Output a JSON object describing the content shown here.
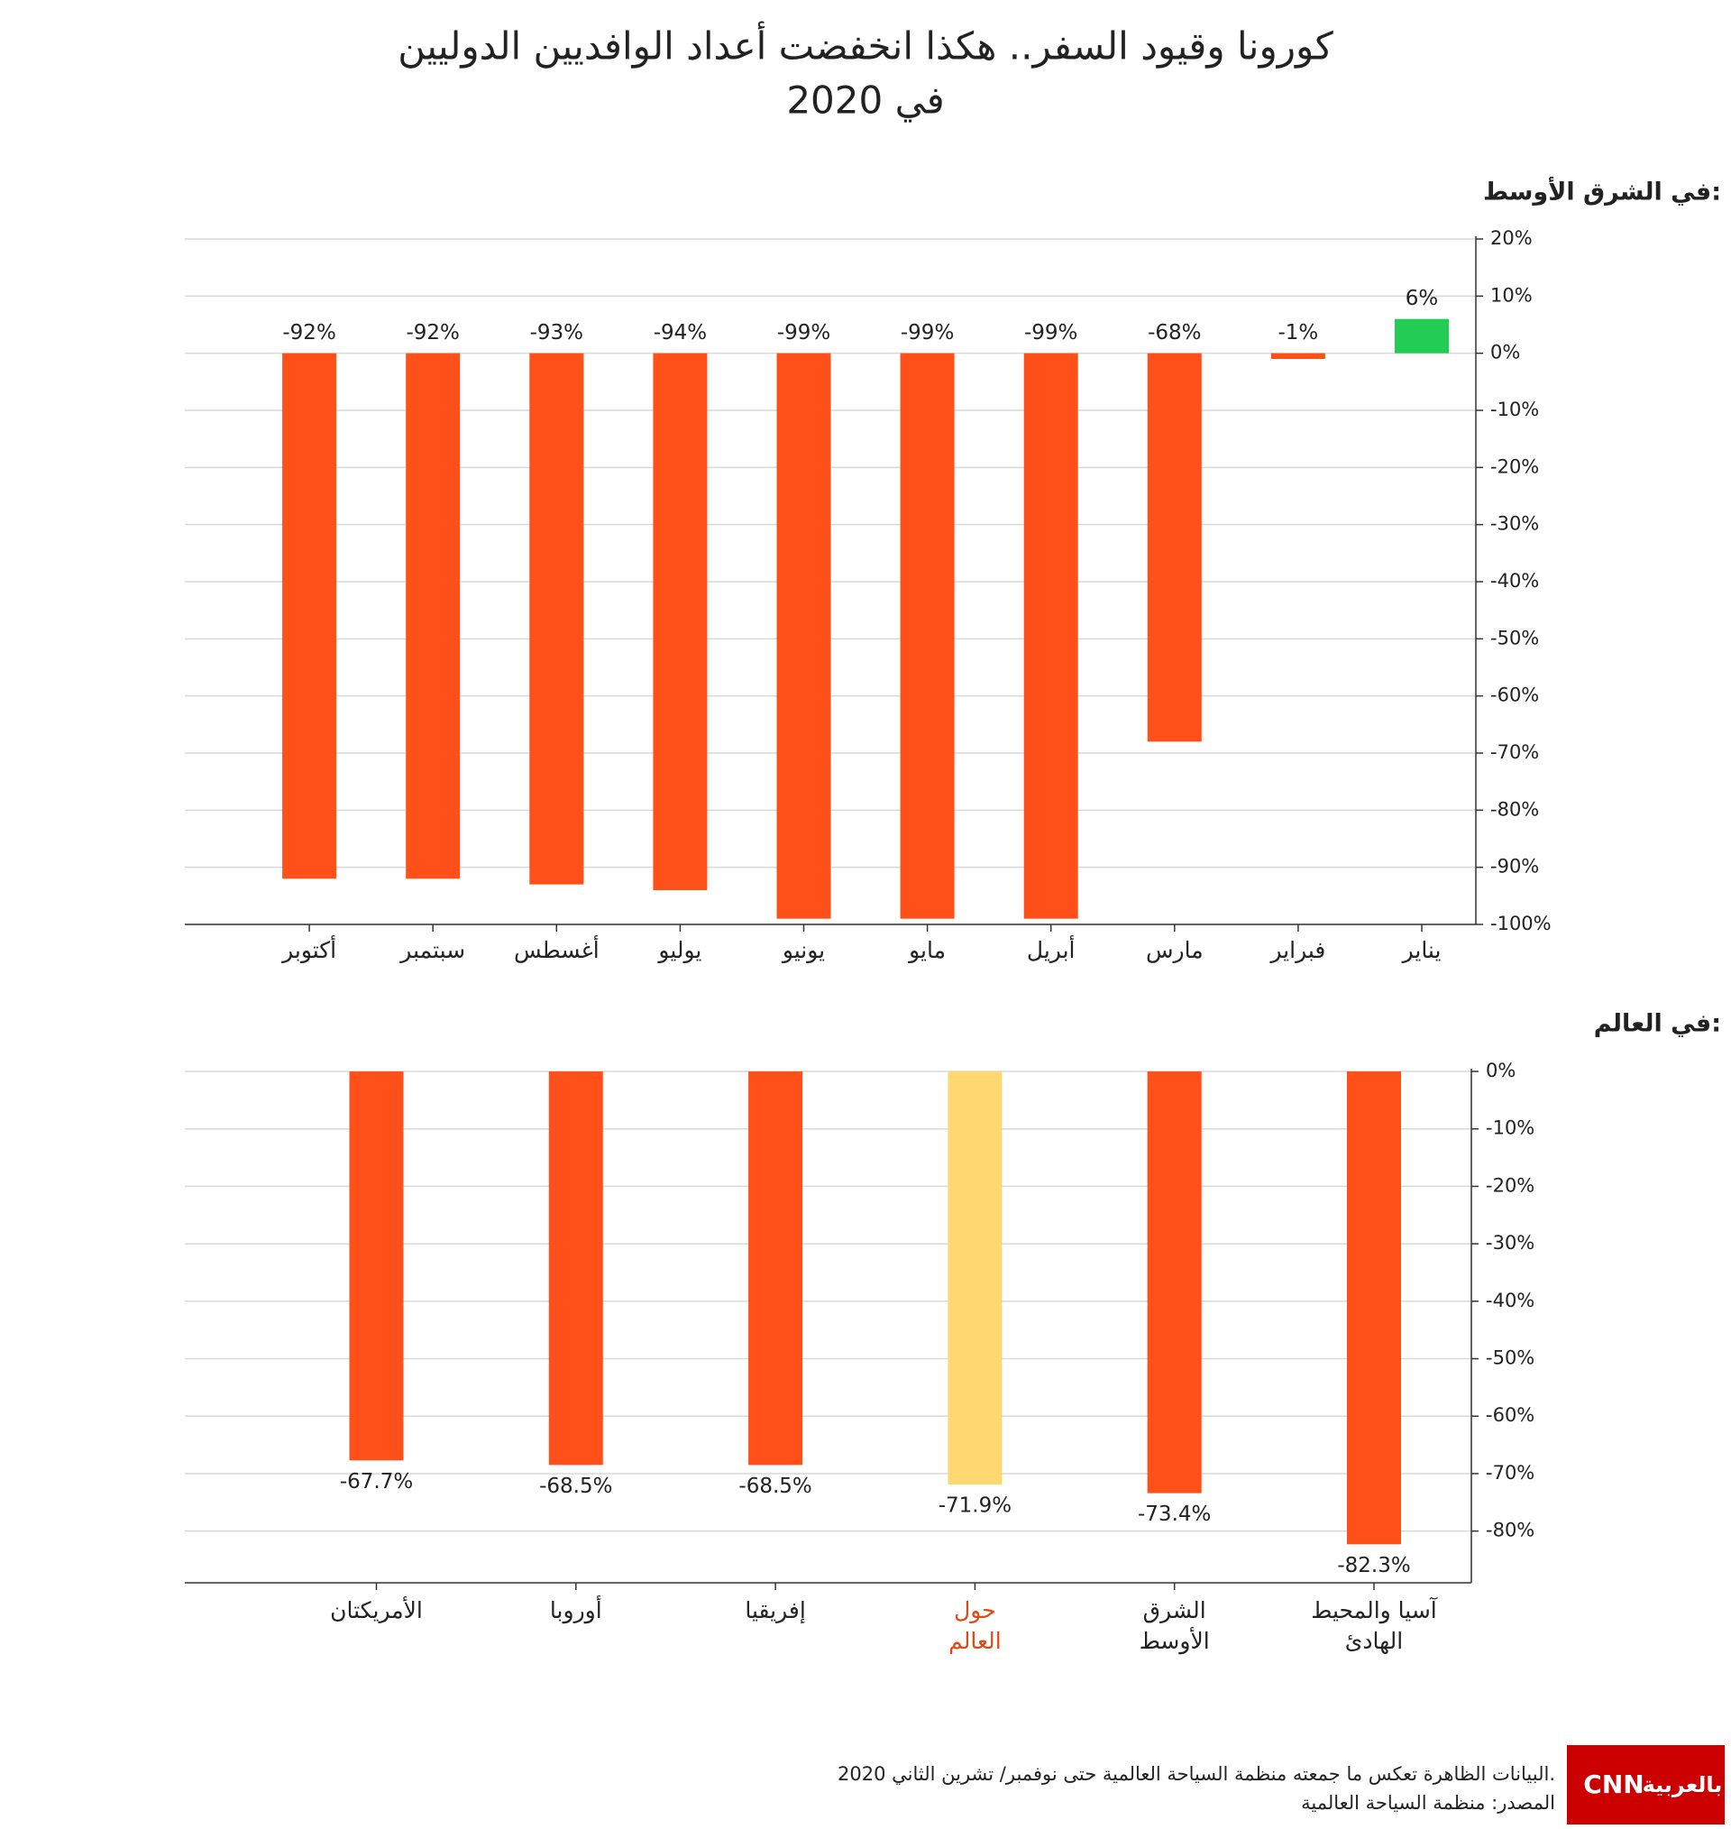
{
  "title": [
    "كورونا وقيود السفر.. هكذا انخفضت أعداد الوافديين الدوليين",
    "في 2020"
  ],
  "chart_data": [
    {
      "type": "bar",
      "subtitle": "في الشرق الأوسط:",
      "categories": [
        [
          "يناير"
        ],
        [
          "فبراير"
        ],
        [
          "مارس"
        ],
        [
          "أبريل"
        ],
        [
          "مايو"
        ],
        [
          "يونيو"
        ],
        [
          "يوليو"
        ],
        [
          "أغسطس"
        ],
        [
          "سبتمبر"
        ],
        [
          "أكتوبر"
        ]
      ],
      "values": [
        6,
        -1,
        -68,
        -99,
        -99,
        -99,
        -94,
        -93,
        -92,
        -92
      ],
      "value_labels": [
        "6%",
        "-1%",
        "-68%",
        "-99%",
        "-99%",
        "-99%",
        "-94%",
        "-93%",
        "-92%",
        "-92%"
      ],
      "colors": [
        "#22cc55",
        "#ff5019",
        "#ff5019",
        "#ff5019",
        "#ff5019",
        "#ff5019",
        "#ff5019",
        "#ff5019",
        "#ff5019",
        "#ff5019"
      ],
      "ylim": [
        -100,
        20
      ],
      "yticks": [
        {
          "value": 20,
          "label": "20%"
        },
        {
          "value": 10,
          "label": "10%"
        },
        {
          "value": 0,
          "label": "0%"
        },
        {
          "value": -10,
          "label": "-10%"
        },
        {
          "value": -20,
          "label": "-20%"
        },
        {
          "value": -30,
          "label": "-30%"
        },
        {
          "value": -40,
          "label": "-40%"
        },
        {
          "value": -50,
          "label": "-50%"
        },
        {
          "value": -60,
          "label": "-60%"
        },
        {
          "value": -70,
          "label": "-70%"
        },
        {
          "value": -80,
          "label": "-80%"
        },
        {
          "value": -90,
          "label": "-90%"
        },
        {
          "value": -100,
          "label": "-100%"
        }
      ],
      "grid": true,
      "value_label_position": "above"
    },
    {
      "type": "bar",
      "subtitle": "في العالم:",
      "categories": [
        [
          "آسيا والمحيط",
          "الهادئ"
        ],
        [
          "الشرق",
          "الأوسط"
        ],
        [
          "حول",
          "العالم"
        ],
        [
          "إفريقيا"
        ],
        [
          "أوروبا"
        ],
        [
          "الأمريكتان"
        ]
      ],
      "values": [
        -82.3,
        -73.4,
        -71.9,
        -68.5,
        -68.5,
        -67.7
      ],
      "value_labels": [
        "-82.3%",
        "-73.4%",
        "-71.9%",
        "-68.5%",
        "-68.5%",
        "-67.7%"
      ],
      "colors": [
        "#ff5019",
        "#ff5019",
        "#ffd970",
        "#ff5019",
        "#ff5019",
        "#ff5019"
      ],
      "label_colors": [
        "#222222",
        "#222222",
        "#e04a12",
        "#222222",
        "#222222",
        "#222222"
      ],
      "ylim": [
        -89,
        0
      ],
      "yticks": [
        {
          "value": 0,
          "label": "0%"
        },
        {
          "value": -10,
          "label": "-10%"
        },
        {
          "value": -20,
          "label": "-20%"
        },
        {
          "value": -30,
          "label": "-30%"
        },
        {
          "value": -40,
          "label": "-40%"
        },
        {
          "value": -50,
          "label": "-50%"
        },
        {
          "value": -60,
          "label": "-60%"
        },
        {
          "value": -70,
          "label": "-70%"
        },
        {
          "value": -80,
          "label": "-80%"
        }
      ],
      "grid": true,
      "value_label_position": "below"
    }
  ],
  "footnotes": [
    "البيانات الظاهرة تعكس ما جمعته منظمة السياحة العالمية حتى نوفمبر/ تشرين الثاني 2020.",
    "المصدر: منظمة السياحة العالمية"
  ],
  "logo": [
    "CNN",
    "بالعربية"
  ]
}
